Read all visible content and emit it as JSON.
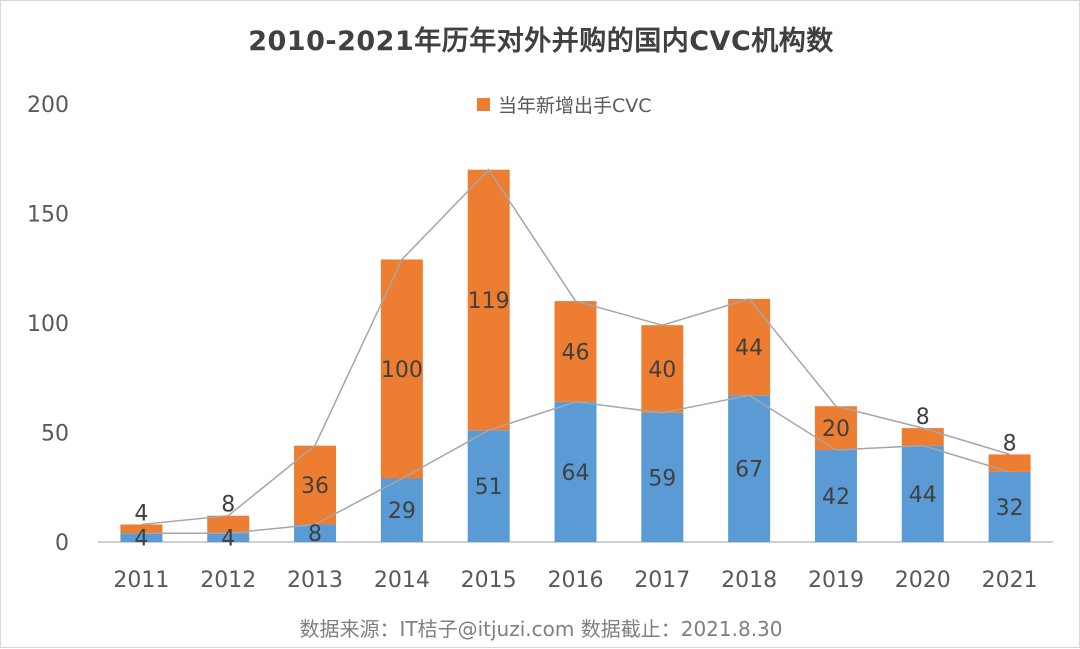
{
  "title": "2010-2021年历年对外并购的国内CVC机构数",
  "source_note": "数据来源：IT桔子@itjuzi.com  数据截止：2021.8.30",
  "colors": {
    "base": "#5b9bd5",
    "new": "#ed7d31",
    "line": "#a6a6a6",
    "axis": "#bfbfbf"
  },
  "chart_data": {
    "type": "bar",
    "stacked": true,
    "categories": [
      "2011",
      "2012",
      "2013",
      "2014",
      "2015",
      "2016",
      "2017",
      "2018",
      "2019",
      "2020",
      "2021"
    ],
    "series": [
      {
        "values": [
          4,
          4,
          8,
          29,
          51,
          64,
          59,
          67,
          42,
          44,
          32
        ]
      },
      {
        "name": "当年新增出手CVC",
        "values": [
          4,
          8,
          36,
          100,
          119,
          46,
          40,
          44,
          20,
          8,
          8
        ]
      }
    ],
    "ylim": [
      0,
      200
    ],
    "yticks": [
      0,
      50,
      100,
      150,
      200
    ],
    "legend": "top-center",
    "grid": false
  }
}
